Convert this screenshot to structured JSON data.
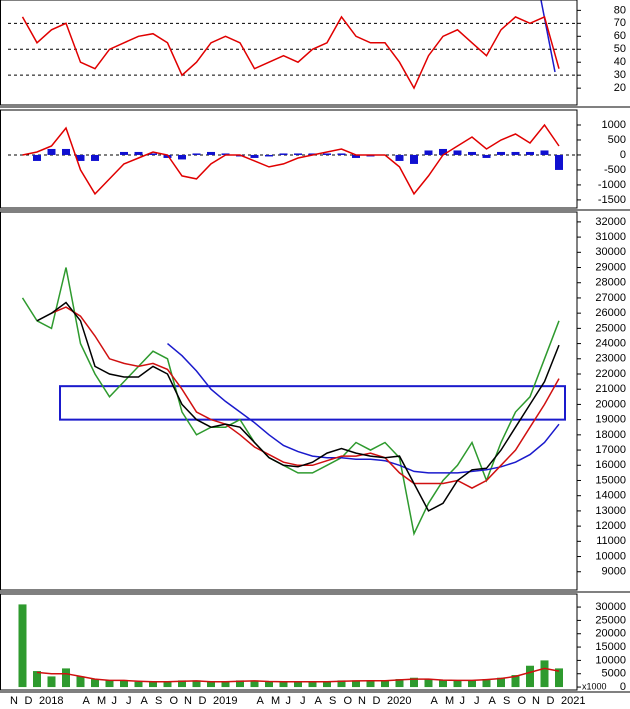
{
  "chart_data": [
    {
      "type": "line",
      "ylim": [
        7,
        88
      ],
      "yticks": [
        20,
        30,
        40,
        50,
        60,
        70,
        80
      ],
      "reference_lines": [
        30,
        50,
        70
      ],
      "series": [
        {
          "color": "#e00000",
          "style": "line",
          "values": [
            null,
            75,
            55,
            65,
            70,
            40,
            35,
            50,
            55,
            60,
            62,
            55,
            30,
            40,
            55,
            60,
            55,
            35,
            40,
            45,
            40,
            50,
            55,
            75,
            60,
            55,
            55,
            40,
            20,
            45,
            60,
            65,
            55,
            45,
            65,
            75,
            70,
            75,
            35
          ]
        }
      ]
    },
    {
      "type": "line",
      "ylim": [
        -1770,
        1500
      ],
      "yticks": [
        -1500,
        -1000,
        -500,
        0,
        500,
        1000
      ],
      "reference_lines": [
        0
      ],
      "series": [
        {
          "color": "#1010d0",
          "style": "bar",
          "values": [
            null,
            0,
            -200,
            200,
            200,
            -200,
            -200,
            0,
            100,
            100,
            50,
            -100,
            -150,
            50,
            100,
            50,
            -50,
            -100,
            -50,
            50,
            50,
            50,
            50,
            50,
            -100,
            -50,
            0,
            -200,
            -300,
            150,
            200,
            150,
            100,
            -100,
            100,
            100,
            100,
            150,
            -500
          ]
        },
        {
          "color": "#e00000",
          "style": "line",
          "values": [
            null,
            0,
            100,
            300,
            900,
            -500,
            -1300,
            -800,
            -300,
            -100,
            100,
            0,
            -700,
            -800,
            -300,
            0,
            0,
            -200,
            -400,
            -300,
            -100,
            0,
            100,
            200,
            0,
            0,
            0,
            -400,
            -1300,
            -700,
            0,
            300,
            600,
            200,
            500,
            700,
            400,
            1000,
            300
          ]
        }
      ]
    },
    {
      "type": "line",
      "ylim": [
        7800,
        32650
      ],
      "yticks": [
        9000,
        10000,
        11000,
        12000,
        13000,
        14000,
        15000,
        16000,
        17000,
        18000,
        19000,
        20000,
        21000,
        22000,
        23000,
        24000,
        25000,
        26000,
        27000,
        28000,
        29000,
        30000,
        31000,
        32000
      ],
      "band": [
        19000,
        21200
      ],
      "series": [
        {
          "color": "#2e9a2e",
          "style": "line",
          "values": [
            null,
            27000,
            25500,
            25000,
            29000,
            24000,
            22000,
            20500,
            21500,
            22500,
            23500,
            23000,
            19500,
            18000,
            18500,
            18500,
            19000,
            17500,
            16500,
            16000,
            15500,
            15500,
            16000,
            16500,
            17500,
            17000,
            17500,
            16500,
            11500,
            13500,
            15000,
            16000,
            17500,
            15000,
            17500,
            19500,
            20500,
            23000,
            25500
          ]
        },
        {
          "color": "#1a1acc",
          "style": "line",
          "values": [
            null,
            null,
            null,
            null,
            null,
            null,
            null,
            null,
            null,
            null,
            null,
            24000,
            23200,
            22200,
            21000,
            20200,
            19500,
            18800,
            18000,
            17300,
            16900,
            16600,
            16500,
            16500,
            16400,
            16400,
            16300,
            16000,
            15600,
            15500,
            15500,
            15500,
            15600,
            15700,
            15900,
            16200,
            16700,
            17500,
            18700
          ]
        },
        {
          "color": "#d01010",
          "style": "line",
          "values": [
            null,
            null,
            null,
            26000,
            26400,
            25800,
            24500,
            23000,
            22700,
            22500,
            22700,
            22300,
            21000,
            19500,
            19000,
            18700,
            18000,
            17200,
            16700,
            16200,
            16000,
            16000,
            16300,
            16600,
            16600,
            16800,
            16500,
            15500,
            14800,
            14800,
            14800,
            15000,
            14500,
            15000,
            16000,
            17000,
            18500,
            20000,
            21700
          ]
        },
        {
          "color": "#000000",
          "style": "line",
          "values": [
            null,
            null,
            25500,
            26000,
            26700,
            25500,
            22500,
            22000,
            21800,
            21800,
            22500,
            22000,
            20000,
            19000,
            18500,
            18700,
            18500,
            17500,
            16500,
            16000,
            15900,
            16200,
            16800,
            17100,
            16800,
            16600,
            16500,
            16600,
            14800,
            13000,
            13500,
            15000,
            15700,
            15800,
            17000,
            18500,
            20000,
            21500,
            23900
          ]
        }
      ]
    },
    {
      "type": "bar",
      "ylim": [
        -1100,
        34900
      ],
      "yticks": [
        0,
        5000,
        10000,
        15000,
        20000,
        25000,
        30000
      ],
      "unit_label": "x1000",
      "categories": [
        "N",
        "D",
        "2018",
        null,
        null,
        "A",
        "M",
        "J",
        "J",
        "A",
        "S",
        "O",
        "N",
        "D",
        "2019",
        null,
        null,
        "A",
        "M",
        "J",
        "J",
        "A",
        "S",
        "O",
        "N",
        "D",
        "2020",
        null,
        null,
        "A",
        "M",
        "J",
        "J",
        "A",
        "S",
        "O",
        "N",
        "D",
        "2021"
      ],
      "series": [
        {
          "color": "#2e9a2e",
          "style": "bar",
          "values": [
            null,
            31000,
            6000,
            4000,
            7000,
            4000,
            3000,
            2500,
            2500,
            2000,
            2000,
            2000,
            2500,
            2500,
            2000,
            2000,
            2500,
            2500,
            2000,
            2000,
            2000,
            2000,
            2000,
            2500,
            2500,
            2500,
            2500,
            3000,
            3500,
            3000,
            2500,
            2500,
            2500,
            3000,
            3500,
            4500,
            8000,
            10000,
            7000
          ]
        },
        {
          "color": "#d01010",
          "style": "line",
          "values": [
            null,
            null,
            5500,
            5000,
            5000,
            4000,
            3000,
            2500,
            2500,
            2200,
            2000,
            2000,
            2200,
            2300,
            2000,
            2000,
            2200,
            2300,
            2100,
            2000,
            2000,
            2000,
            2000,
            2200,
            2300,
            2400,
            2400,
            2700,
            3000,
            3000,
            2600,
            2500,
            2500,
            2800,
            3200,
            4000,
            5500,
            7000,
            6000
          ]
        }
      ]
    }
  ]
}
